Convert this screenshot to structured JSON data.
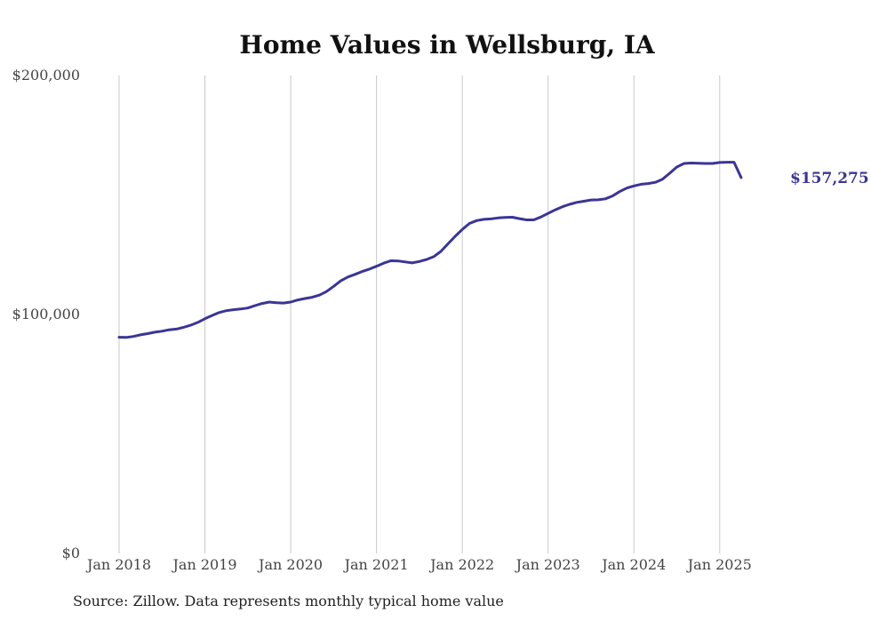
{
  "chart_data": {
    "type": "line",
    "title": "Home Values in Wellsburg, IA",
    "xlabel": "",
    "ylabel": "",
    "ylim": [
      0,
      200000
    ],
    "y_ticks": [
      {
        "value": 0,
        "label": "$0"
      },
      {
        "value": 100000,
        "label": "$100,000"
      },
      {
        "value": 200000,
        "label": "$200,000"
      }
    ],
    "x_ticks": [
      {
        "t": 0,
        "label": "Jan 2018"
      },
      {
        "t": 12,
        "label": "Jan 2019"
      },
      {
        "t": 24,
        "label": "Jan 2020"
      },
      {
        "t": 36,
        "label": "Jan 2021"
      },
      {
        "t": 48,
        "label": "Jan 2022"
      },
      {
        "t": 60,
        "label": "Jan 2023"
      },
      {
        "t": 72,
        "label": "Jan 2024"
      },
      {
        "t": 84,
        "label": "Jan 2025"
      }
    ],
    "x_range": [
      0,
      92
    ],
    "grid": "vertical",
    "series": [
      {
        "name": "Typical home value",
        "color": "#3a3596",
        "points": [
          [
            0,
            90500
          ],
          [
            1,
            90400
          ],
          [
            2,
            90800
          ],
          [
            3,
            91500
          ],
          [
            4,
            92000
          ],
          [
            5,
            92600
          ],
          [
            6,
            93000
          ],
          [
            7,
            93600
          ],
          [
            8,
            93900
          ],
          [
            9,
            94600
          ],
          [
            10,
            95500
          ],
          [
            11,
            96700
          ],
          [
            12,
            98200
          ],
          [
            13,
            99600
          ],
          [
            14,
            100800
          ],
          [
            15,
            101600
          ],
          [
            16,
            102000
          ],
          [
            17,
            102300
          ],
          [
            18,
            102700
          ],
          [
            19,
            103700
          ],
          [
            20,
            104600
          ],
          [
            21,
            105200
          ],
          [
            22,
            104900
          ],
          [
            23,
            104800
          ],
          [
            24,
            105200
          ],
          [
            25,
            106100
          ],
          [
            26,
            106700
          ],
          [
            27,
            107200
          ],
          [
            28,
            108100
          ],
          [
            29,
            109600
          ],
          [
            30,
            111800
          ],
          [
            31,
            114100
          ],
          [
            32,
            115700
          ],
          [
            33,
            116800
          ],
          [
            34,
            118000
          ],
          [
            35,
            119000
          ],
          [
            36,
            120200
          ],
          [
            37,
            121500
          ],
          [
            38,
            122500
          ],
          [
            39,
            122400
          ],
          [
            40,
            122000
          ],
          [
            41,
            121600
          ],
          [
            42,
            122200
          ],
          [
            43,
            123000
          ],
          [
            44,
            124200
          ],
          [
            45,
            126400
          ],
          [
            46,
            129600
          ],
          [
            47,
            132700
          ],
          [
            48,
            135600
          ],
          [
            49,
            138100
          ],
          [
            50,
            139300
          ],
          [
            51,
            139800
          ],
          [
            52,
            140000
          ],
          [
            53,
            140400
          ],
          [
            54,
            140600
          ],
          [
            55,
            140700
          ],
          [
            56,
            140100
          ],
          [
            57,
            139600
          ],
          [
            58,
            139600
          ],
          [
            59,
            140800
          ],
          [
            60,
            142300
          ],
          [
            61,
            143800
          ],
          [
            62,
            145100
          ],
          [
            63,
            146100
          ],
          [
            64,
            146900
          ],
          [
            65,
            147400
          ],
          [
            66,
            147900
          ],
          [
            67,
            148000
          ],
          [
            68,
            148400
          ],
          [
            69,
            149600
          ],
          [
            70,
            151400
          ],
          [
            71,
            152900
          ],
          [
            72,
            153800
          ],
          [
            73,
            154500
          ],
          [
            74,
            154800
          ],
          [
            75,
            155300
          ],
          [
            76,
            156600
          ],
          [
            77,
            159100
          ],
          [
            78,
            161700
          ],
          [
            79,
            163200
          ],
          [
            80,
            163400
          ],
          [
            81,
            163300
          ],
          [
            82,
            163200
          ],
          [
            83,
            163200
          ],
          [
            84,
            163600
          ],
          [
            85,
            163700
          ],
          [
            86,
            163700
          ],
          [
            87,
            157275
          ]
        ]
      }
    ],
    "end_label": "$157,275",
    "end_value": 157275
  },
  "source_note": "Source: Zillow. Data represents monthly typical home value"
}
